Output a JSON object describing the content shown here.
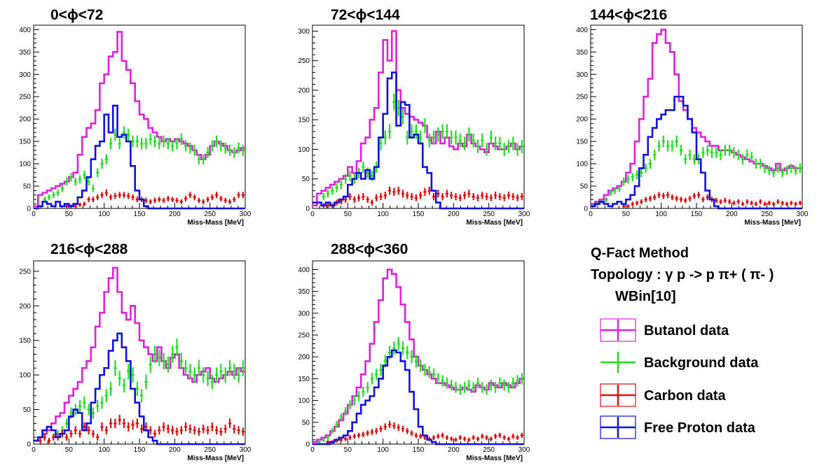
{
  "chart_data": {
    "type": "histogram-grid",
    "xlabel": "Miss-Mass [MeV]",
    "xlim": [
      0,
      300
    ],
    "x_ticks": [
      0,
      50,
      100,
      150,
      200,
      250,
      300
    ],
    "colors": {
      "butanol": "#e020e0",
      "background": "#20e020",
      "carbon": "#e01010",
      "free_proton": "#1010e0"
    },
    "series_names": [
      "Butanol data",
      "Background data",
      "Carbon data",
      "Free Proton data"
    ],
    "panels": [
      {
        "title": "0<ϕ<72",
        "ylim": [
          0,
          410
        ],
        "y_ticks": [
          0,
          50,
          100,
          150,
          200,
          250,
          300,
          350,
          400
        ],
        "butanol": [
          5,
          30,
          35,
          40,
          45,
          50,
          55,
          60,
          70,
          80,
          120,
          160,
          180,
          190,
          220,
          280,
          300,
          340,
          350,
          395,
          330,
          310,
          280,
          240,
          210,
          200,
          180,
          170,
          160,
          150,
          155,
          150,
          155,
          150,
          145,
          140,
          130,
          120,
          110,
          120,
          140,
          150,
          145,
          140,
          130,
          125,
          130,
          135
        ],
        "background": [
          0,
          0,
          20,
          25,
          30,
          35,
          45,
          60,
          70,
          60,
          65,
          75,
          60,
          45,
          80,
          100,
          110,
          145,
          165,
          145,
          170,
          165,
          150,
          150,
          145,
          145,
          155,
          150,
          145,
          150,
          145,
          140,
          145,
          155,
          140,
          135,
          130,
          110,
          110,
          125,
          140,
          150,
          140,
          135,
          130,
          125,
          135,
          130
        ],
        "carbon": [
          0,
          0,
          0,
          0,
          0,
          0,
          0,
          5,
          5,
          5,
          8,
          10,
          20,
          20,
          25,
          30,
          35,
          25,
          28,
          30,
          30,
          28,
          25,
          20,
          20,
          18,
          15,
          18,
          20,
          18,
          22,
          20,
          18,
          15,
          22,
          30,
          25,
          18,
          15,
          20,
          25,
          30,
          22,
          18,
          15,
          20,
          30,
          30
        ],
        "free_proton": [
          0,
          5,
          15,
          10,
          5,
          15,
          5,
          10,
          5,
          10,
          25,
          40,
          70,
          110,
          140,
          150,
          210,
          170,
          230,
          160,
          165,
          150,
          95,
          40,
          20,
          5,
          0,
          0,
          0,
          0,
          0,
          0,
          0,
          0,
          0,
          0,
          0,
          0,
          0,
          0,
          0,
          0,
          0,
          0,
          0,
          0,
          0,
          0
        ]
      },
      {
        "title": "72<ϕ<144",
        "ylim": [
          0,
          310
        ],
        "y_ticks": [
          0,
          50,
          100,
          150,
          200,
          250,
          300
        ],
        "butanol": [
          5,
          25,
          30,
          35,
          40,
          45,
          50,
          55,
          70,
          60,
          80,
          110,
          120,
          150,
          170,
          230,
          285,
          250,
          300,
          200,
          170,
          160,
          155,
          150,
          145,
          140,
          120,
          110,
          130,
          110,
          120,
          105,
          100,
          110,
          105,
          125,
          110,
          105,
          100,
          95,
          110,
          105,
          100,
          100,
          105,
          110,
          100,
          105
        ],
        "background": [
          0,
          0,
          20,
          25,
          30,
          35,
          40,
          50,
          55,
          50,
          60,
          70,
          60,
          55,
          70,
          110,
          120,
          130,
          180,
          170,
          155,
          120,
          130,
          130,
          120,
          140,
          115,
          120,
          125,
          130,
          130,
          120,
          120,
          115,
          110,
          125,
          115,
          105,
          115,
          100,
          120,
          110,
          110,
          100,
          105,
          110,
          100,
          105
        ],
        "carbon": [
          0,
          0,
          5,
          5,
          5,
          10,
          12,
          15,
          20,
          15,
          18,
          20,
          15,
          10,
          18,
          20,
          22,
          30,
          28,
          30,
          25,
          22,
          20,
          18,
          22,
          28,
          30,
          20,
          25,
          20,
          25,
          22,
          20,
          18,
          22,
          25,
          20,
          18,
          22,
          20,
          18,
          22,
          20,
          18,
          22,
          20,
          18,
          20
        ],
        "free_proton": [
          10,
          10,
          5,
          10,
          5,
          10,
          15,
          20,
          40,
          50,
          60,
          50,
          65,
          50,
          70,
          120,
          160,
          220,
          230,
          140,
          180,
          175,
          120,
          125,
          110,
          70,
          60,
          30,
          10,
          0,
          0,
          0,
          0,
          0,
          0,
          0,
          0,
          0,
          0,
          0,
          0,
          0,
          0,
          0,
          0,
          0,
          0,
          0
        ]
      },
      {
        "title": "144<ϕ<216",
        "ylim": [
          0,
          410
        ],
        "y_ticks": [
          0,
          50,
          100,
          150,
          200,
          250,
          300,
          350,
          400
        ],
        "butanol": [
          10,
          15,
          20,
          30,
          40,
          45,
          50,
          60,
          80,
          100,
          150,
          200,
          250,
          290,
          370,
          390,
          400,
          370,
          350,
          300,
          240,
          220,
          200,
          180,
          170,
          160,
          150,
          140,
          140,
          130,
          130,
          130,
          125,
          120,
          115,
          110,
          105,
          100,
          100,
          95,
          90,
          85,
          100,
          85,
          90,
          95,
          90,
          90
        ],
        "background": [
          5,
          10,
          15,
          20,
          35,
          40,
          45,
          60,
          65,
          70,
          75,
          80,
          90,
          100,
          120,
          140,
          150,
          140,
          140,
          150,
          130,
          110,
          120,
          110,
          110,
          125,
          130,
          125,
          125,
          120,
          130,
          130,
          125,
          120,
          110,
          120,
          115,
          100,
          100,
          90,
          85,
          80,
          90,
          80,
          85,
          90,
          85,
          90
        ],
        "carbon": [
          0,
          0,
          0,
          0,
          0,
          0,
          0,
          5,
          5,
          10,
          12,
          15,
          20,
          22,
          25,
          30,
          28,
          30,
          25,
          22,
          20,
          18,
          22,
          28,
          30,
          20,
          25,
          20,
          18,
          15,
          18,
          15,
          12,
          15,
          10,
          15,
          12,
          10,
          15,
          10,
          12,
          10,
          15,
          12,
          10,
          12,
          10,
          12
        ],
        "free_proton": [
          5,
          10,
          15,
          10,
          5,
          10,
          15,
          10,
          20,
          30,
          50,
          90,
          120,
          160,
          180,
          200,
          210,
          220,
          220,
          250,
          250,
          230,
          200,
          170,
          110,
          80,
          40,
          20,
          5,
          0,
          0,
          0,
          0,
          0,
          0,
          0,
          0,
          0,
          0,
          0,
          0,
          0,
          0,
          0,
          0,
          0,
          0,
          0
        ]
      },
      {
        "title": "216<ϕ<288",
        "ylim": [
          0,
          265
        ],
        "y_ticks": [
          0,
          50,
          100,
          150,
          200,
          250
        ],
        "butanol": [
          5,
          10,
          15,
          20,
          30,
          40,
          45,
          60,
          70,
          80,
          90,
          110,
          120,
          140,
          170,
          190,
          220,
          240,
          255,
          220,
          190,
          180,
          200,
          175,
          150,
          140,
          130,
          120,
          140,
          120,
          110,
          125,
          130,
          110,
          100,
          95,
          90,
          100,
          105,
          110,
          95,
          90,
          95,
          100,
          105,
          100,
          110,
          105
        ],
        "background": [
          0,
          0,
          0,
          5,
          10,
          15,
          20,
          30,
          45,
          50,
          55,
          60,
          50,
          45,
          55,
          60,
          70,
          80,
          110,
          95,
          85,
          105,
          100,
          80,
          70,
          90,
          115,
          130,
          125,
          120,
          115,
          130,
          140,
          120,
          110,
          105,
          100,
          110,
          100,
          95,
          90,
          100,
          105,
          100,
          110,
          105,
          100,
          110
        ],
        "carbon": [
          0,
          5,
          10,
          5,
          10,
          10,
          15,
          10,
          15,
          20,
          15,
          25,
          20,
          15,
          10,
          25,
          20,
          30,
          30,
          35,
          30,
          25,
          28,
          30,
          22,
          25,
          20,
          15,
          20,
          25,
          22,
          20,
          18,
          20,
          25,
          22,
          20,
          18,
          22,
          20,
          25,
          20,
          18,
          22,
          30,
          22,
          20,
          18
        ],
        "free_proton": [
          5,
          10,
          20,
          25,
          20,
          10,
          15,
          20,
          40,
          50,
          45,
          20,
          30,
          60,
          80,
          100,
          110,
          135,
          150,
          160,
          140,
          120,
          80,
          60,
          40,
          20,
          10,
          5,
          0,
          0,
          0,
          0,
          0,
          0,
          0,
          0,
          0,
          0,
          0,
          0,
          0,
          0,
          0,
          0,
          0,
          0,
          0,
          0
        ]
      },
      {
        "title": "288<ϕ<360",
        "ylim": [
          0,
          420
        ],
        "y_ticks": [
          0,
          50,
          100,
          150,
          200,
          250,
          300,
          350,
          400
        ],
        "butanol": [
          5,
          10,
          15,
          20,
          30,
          40,
          55,
          70,
          90,
          110,
          130,
          160,
          190,
          230,
          280,
          330,
          380,
          400,
          390,
          360,
          320,
          280,
          240,
          200,
          180,
          170,
          160,
          150,
          140,
          140,
          135,
          130,
          125,
          125,
          130,
          125,
          120,
          135,
          130,
          125,
          140,
          135,
          130,
          140,
          135,
          130,
          140,
          150
        ],
        "background": [
          0,
          5,
          10,
          15,
          30,
          45,
          60,
          75,
          90,
          100,
          110,
          120,
          130,
          150,
          160,
          170,
          190,
          210,
          220,
          230,
          220,
          210,
          200,
          190,
          180,
          170,
          165,
          160,
          150,
          145,
          140,
          135,
          130,
          125,
          130,
          135,
          130,
          140,
          130,
          125,
          135,
          130,
          140,
          135,
          130,
          140,
          145,
          150
        ],
        "carbon": [
          0,
          0,
          0,
          5,
          5,
          8,
          10,
          12,
          15,
          18,
          20,
          22,
          25,
          28,
          30,
          35,
          40,
          45,
          42,
          38,
          35,
          30,
          25,
          20,
          18,
          15,
          12,
          15,
          18,
          20,
          15,
          12,
          10,
          15,
          12,
          10,
          15,
          12,
          18,
          15,
          12,
          18,
          20,
          15,
          12,
          18,
          15,
          20
        ],
        "free_proton": [
          0,
          0,
          0,
          0,
          5,
          10,
          15,
          20,
          30,
          50,
          70,
          90,
          100,
          110,
          130,
          150,
          180,
          200,
          215,
          210,
          190,
          170,
          120,
          80,
          40,
          20,
          10,
          5,
          0,
          0,
          0,
          0,
          0,
          0,
          0,
          0,
          0,
          0,
          0,
          0,
          0,
          0,
          0,
          0,
          0,
          0,
          0,
          0
        ]
      }
    ]
  },
  "info": {
    "line1": "Q-Fact Method",
    "line2": "Topology : γ p -> p π+ ( π- )",
    "line3": "WBin[10]"
  },
  "legend": [
    {
      "key": "butanol",
      "label": "Butanol data"
    },
    {
      "key": "background",
      "label": "Background data"
    },
    {
      "key": "carbon",
      "label": "Carbon data"
    },
    {
      "key": "free_proton",
      "label": "Free Proton data"
    }
  ]
}
